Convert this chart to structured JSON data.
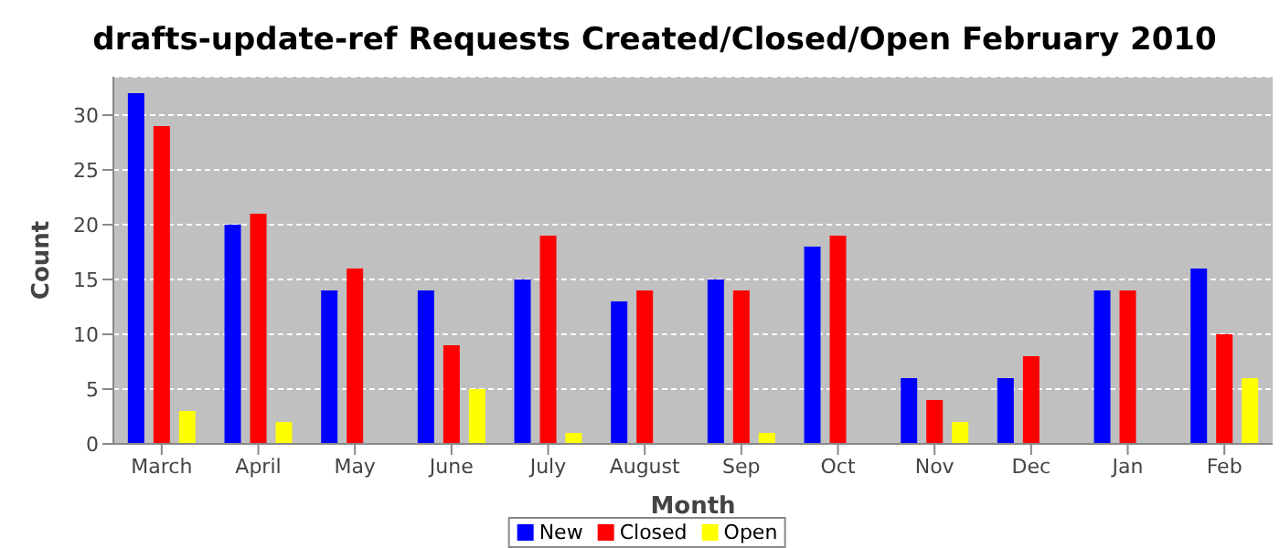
{
  "chart_data": {
    "type": "bar",
    "title": "drafts-update-ref Requests Created/Closed/Open February 2010",
    "xlabel": "Month",
    "ylabel": "Count",
    "categories": [
      "March",
      "April",
      "May",
      "June",
      "July",
      "August",
      "Sep",
      "Oct",
      "Nov",
      "Dec",
      "Jan",
      "Feb"
    ],
    "series": [
      {
        "name": "New",
        "color": "#0000ff",
        "values": [
          32,
          20,
          14,
          14,
          15,
          13,
          15,
          18,
          6,
          6,
          14,
          16
        ]
      },
      {
        "name": "Closed",
        "color": "#ff0000",
        "values": [
          29,
          21,
          16,
          9,
          19,
          14,
          14,
          19,
          4,
          8,
          14,
          10
        ]
      },
      {
        "name": "Open",
        "color": "#ffff00",
        "values": [
          3,
          2,
          0,
          5,
          1,
          0,
          1,
          0,
          2,
          0,
          0,
          6
        ]
      }
    ],
    "ylim": [
      0,
      33.5
    ],
    "yticks": [
      0,
      5,
      10,
      15,
      20,
      25,
      30
    ],
    "grid": "y",
    "legend": "bottom"
  }
}
